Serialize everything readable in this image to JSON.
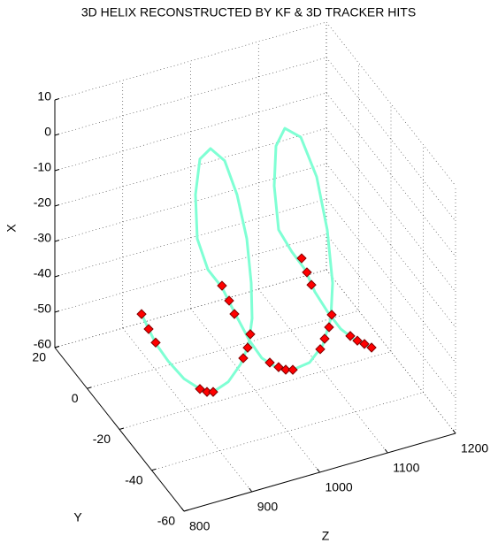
{
  "chart_data": {
    "type": "line3d",
    "title": "3D HELIX RECONSTRUCTED BY KF & 3D TRACKER HITS",
    "xlabel": "X",
    "ylabel": "Y",
    "zlabel": "Z",
    "xlim": [
      -60,
      10
    ],
    "xticks": [
      -60,
      -50,
      -40,
      -30,
      -20,
      -10,
      0,
      10
    ],
    "ylim": [
      -60,
      20
    ],
    "yticks": [
      -60,
      -40,
      -20,
      0,
      20
    ],
    "zlim": [
      800,
      1200
    ],
    "zticks": [
      800,
      900,
      1000,
      1100,
      1200
    ],
    "grid": true,
    "helix": {
      "color": "#7fffd4",
      "x": [
        -29.2,
        -34.0,
        -38.6,
        -44.6,
        -50.9,
        -55.1,
        -57.0,
        -55.4,
        -51.4,
        -46.6,
        -39.4,
        -29.3,
        -16.4,
        -3.2,
        7.4,
        12.0,
        9.9,
        0.2,
        -12.4,
        -22.0,
        -28.2,
        -36.8,
        -45.4,
        -51.4,
        -55.1,
        -57.2,
        -56.5,
        -52.6,
        -45.8,
        -35.9,
        -20.5,
        -4.6,
        7.9,
        11.7,
        7.4,
        -3.7,
        -16.5,
        -23.8,
        -29.9,
        -37.0,
        -43.5,
        -49.5,
        -54.0,
        -57.3
      ],
      "y": [
        -20,
        -20,
        -20,
        -20,
        -20,
        -20,
        -20,
        -20,
        -20,
        -20,
        -20,
        -20,
        -20,
        -20,
        -20,
        -20,
        -20,
        -20,
        -20,
        -20,
        -20,
        -20,
        -20,
        -20,
        -20,
        -20,
        -20,
        -20,
        -20,
        -20,
        -20,
        -20,
        -20,
        -20,
        -20,
        -20,
        -20,
        -20,
        -20,
        -20,
        -20,
        -20,
        -20,
        -20
      ],
      "z": [
        832.6,
        843.0,
        853.4,
        871.7,
        895.1,
        918.6,
        938.1,
        960.3,
        978.5,
        990.2,
        995.5,
        994.1,
        987.6,
        973.3,
        955.1,
        934.2,
        918.6,
        912.1,
        914.7,
        930.3,
        951.1,
        970.7,
        991.5,
        1009.8,
        1030.6,
        1055.4,
        1080.1,
        1099.7,
        1111.4,
        1114.0,
        1106.2,
        1090.6,
        1067.1,
        1043.7,
        1030.6,
        1028.0,
        1034.5,
        1054.1,
        1073.6,
        1088.0,
        1106.2,
        1125.8,
        1147.9,
        1171.4
      ]
    },
    "hits": {
      "color": "#ff0000",
      "x": [
        -29.2,
        -34.0,
        -38.4,
        -55.1,
        -56.5,
        -57.0,
        -49.9,
        -47.3,
        -43.7,
        -36.7,
        -32.5,
        -27.7,
        -53.3,
        -55.3,
        -56.6,
        -57.2,
        -53.6,
        -51.0,
        -48.1,
        -44.8,
        -34.7,
        -30.8,
        -26.4,
        -52.3,
        -54.2,
        -55.7,
        -57.3
      ],
      "y": [
        -20,
        -20,
        -20,
        -20,
        -20,
        -20,
        -20,
        -20,
        -20,
        -20,
        -20,
        -20,
        -20,
        -20,
        -20,
        -20,
        -20,
        -20,
        -20,
        -20,
        -20,
        -20,
        -20,
        -20,
        -20,
        -20,
        -20
      ],
      "z": [
        832.6,
        843.0,
        853.4,
        918.6,
        929.0,
        938.1,
        982.4,
        988.9,
        992.8,
        969.4,
        961.6,
        951.1,
        1021.5,
        1034.5,
        1045.0,
        1055.4,
        1095.8,
        1102.3,
        1108.8,
        1112.7,
        1082.8,
        1076.2,
        1068.4,
        1140.1,
        1150.5,
        1160.9,
        1171.4
      ]
    }
  }
}
